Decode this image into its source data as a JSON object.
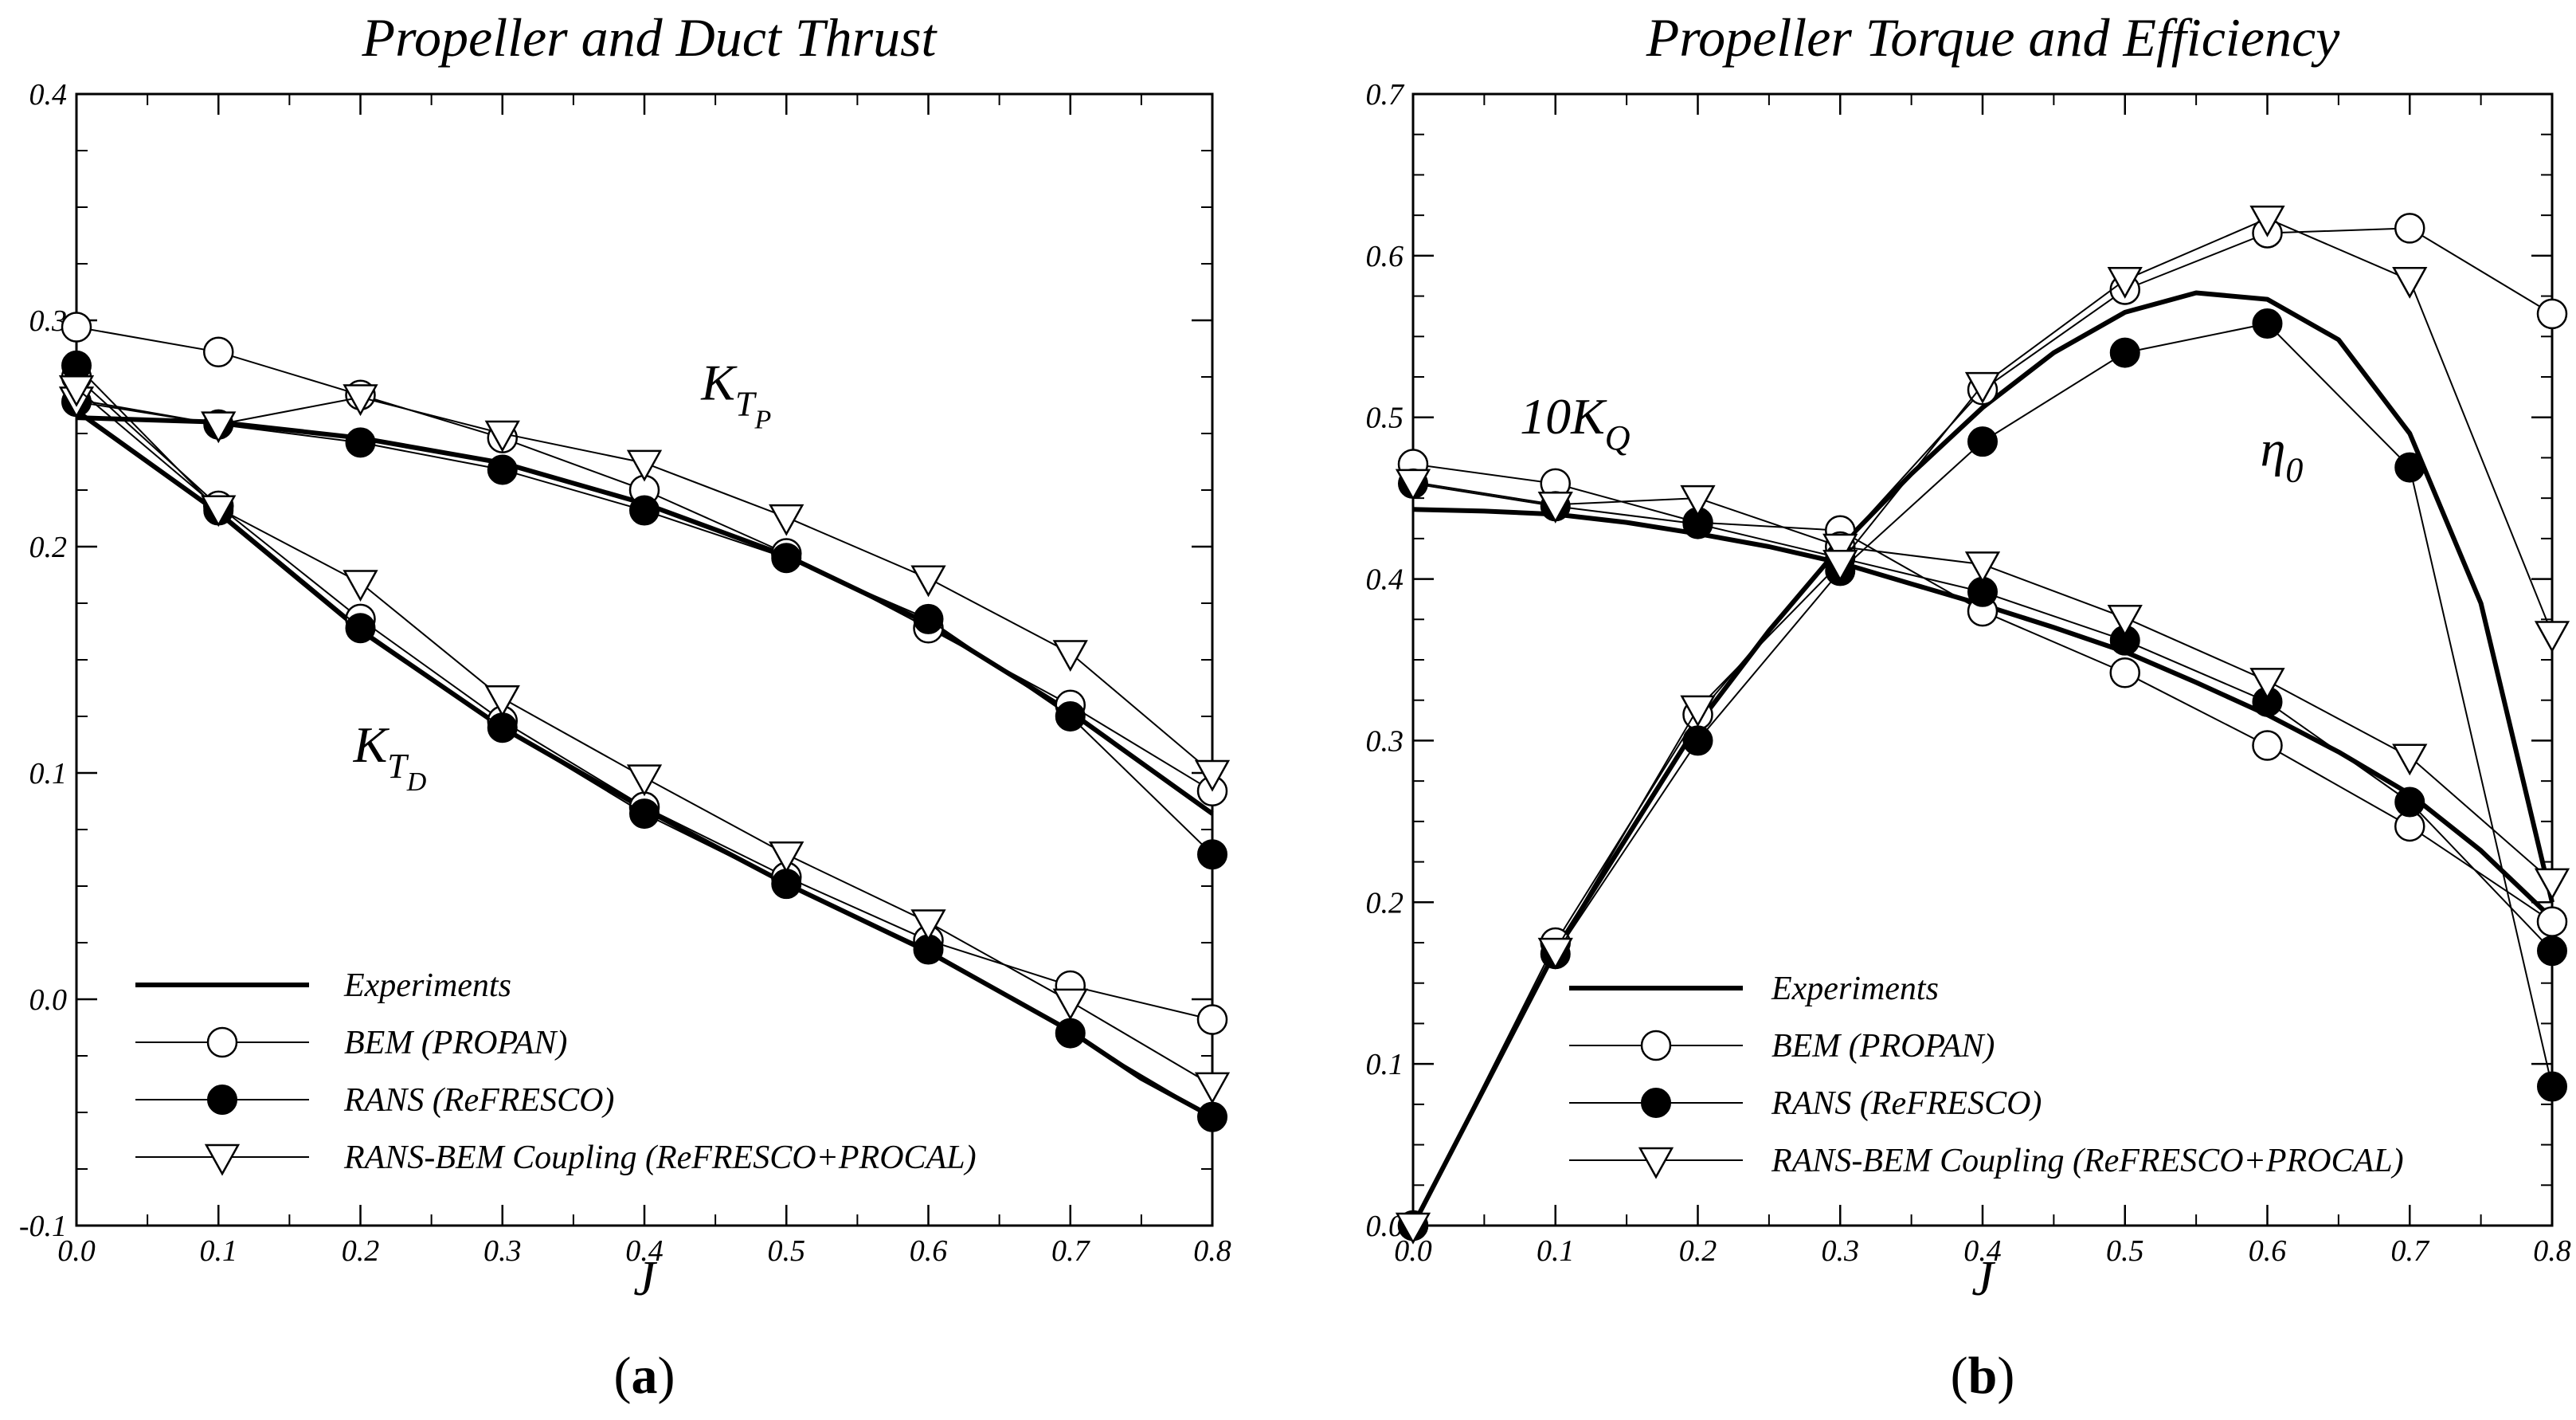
{
  "figure_label": "Propeller and duct thrust / propeller torque and efficiency versus advance ratio J",
  "legend": [
    {
      "label": "Experiments",
      "style": "thick-line"
    },
    {
      "label": "BEM (PROPAN)",
      "style": "open-circle"
    },
    {
      "label": "RANS (ReFRESCO)",
      "style": "filled-circle"
    },
    {
      "label": "RANS-BEM Coupling (ReFRESCO+PROCAL)",
      "style": "open-triangle"
    }
  ],
  "chart_data": [
    {
      "type": "line",
      "panel": "a",
      "caption_letter": "a",
      "title": "Propeller and Duct Thrust",
      "xlabel": "J",
      "ylabel": "",
      "xlim": [
        0.0,
        0.8
      ],
      "ylim": [
        -0.1,
        0.4
      ],
      "xticks": [
        "0.0",
        "0.1",
        "0.2",
        "0.3",
        "0.4",
        "0.5",
        "0.6",
        "0.7",
        "0.8"
      ],
      "yticks": [
        "-0.1",
        "0.0",
        "0.1",
        "0.2",
        "0.3",
        "0.4"
      ],
      "annotations": [
        {
          "main": "K",
          "sub": "T",
          "subsub": "P",
          "at": [
            0.44,
            0.265
          ]
        },
        {
          "main": "K",
          "sub": "T",
          "subsub": "D",
          "at": [
            0.195,
            0.105
          ]
        }
      ],
      "series": [
        {
          "name": "Experiments (K_TP)",
          "style": "thick-line",
          "x": [
            0.0,
            0.1,
            0.2,
            0.3,
            0.4,
            0.5,
            0.6,
            0.7,
            0.8
          ],
          "y": [
            0.257,
            0.255,
            0.248,
            0.237,
            0.219,
            0.196,
            0.166,
            0.127,
            0.082
          ]
        },
        {
          "name": "Experiments (K_TD)",
          "style": "thick-line",
          "x": [
            0.0,
            0.1,
            0.2,
            0.3,
            0.4,
            0.5,
            0.6,
            0.7,
            0.75,
            0.8
          ],
          "y": [
            0.26,
            0.215,
            0.163,
            0.12,
            0.084,
            0.051,
            0.021,
            -0.014,
            -0.035,
            -0.052
          ]
        },
        {
          "name": "BEM (PROPAN) K_TP",
          "style": "open-circle",
          "x": [
            0.0,
            0.1,
            0.2,
            0.3,
            0.4,
            0.5,
            0.6,
            0.7,
            0.8
          ],
          "y": [
            0.297,
            0.286,
            0.267,
            0.248,
            0.225,
            0.197,
            0.164,
            0.13,
            0.092
          ]
        },
        {
          "name": "BEM (PROPAN) K_TD",
          "style": "open-circle",
          "x": [
            0.0,
            0.1,
            0.2,
            0.3,
            0.4,
            0.5,
            0.6,
            0.7,
            0.8
          ],
          "y": [
            0.275,
            0.218,
            0.168,
            0.123,
            0.085,
            0.054,
            0.026,
            0.006,
            -0.009
          ]
        },
        {
          "name": "RANS (ReFRESCO) K_TP",
          "style": "filled-circle",
          "x": [
            0.0,
            0.1,
            0.2,
            0.3,
            0.4,
            0.5,
            0.6,
            0.7,
            0.8
          ],
          "y": [
            0.264,
            0.254,
            0.246,
            0.234,
            0.216,
            0.195,
            0.168,
            0.125,
            0.064
          ]
        },
        {
          "name": "RANS (ReFRESCO) K_TD",
          "style": "filled-circle",
          "x": [
            0.0,
            0.1,
            0.2,
            0.3,
            0.4,
            0.5,
            0.6,
            0.7,
            0.8
          ],
          "y": [
            0.28,
            0.216,
            0.164,
            0.12,
            0.082,
            0.051,
            0.022,
            -0.015,
            -0.052
          ]
        },
        {
          "name": "RANS-BEM Coupling K_TP",
          "style": "open-triangle",
          "x": [
            0.0,
            0.1,
            0.2,
            0.3,
            0.4,
            0.5,
            0.6,
            0.7,
            0.8
          ],
          "y": [
            0.265,
            0.254,
            0.266,
            0.25,
            0.237,
            0.213,
            0.186,
            0.153,
            0.1
          ]
        },
        {
          "name": "RANS-BEM Coupling K_TD",
          "style": "open-triangle",
          "x": [
            0.0,
            0.1,
            0.2,
            0.3,
            0.4,
            0.5,
            0.6,
            0.7,
            0.8
          ],
          "y": [
            0.27,
            0.217,
            0.184,
            0.133,
            0.098,
            0.064,
            0.034,
            -0.001,
            -0.038
          ]
        }
      ]
    },
    {
      "type": "line",
      "panel": "b",
      "caption_letter": "b",
      "title": "Propeller Torque and Efficiency",
      "xlabel": "J",
      "ylabel": "",
      "xlim": [
        0.0,
        0.8
      ],
      "ylim": [
        0.0,
        0.7
      ],
      "xticks": [
        "0.0",
        "0.1",
        "0.2",
        "0.3",
        "0.4",
        "0.5",
        "0.6",
        "0.7",
        "0.8"
      ],
      "yticks": [
        "0.0",
        "0.1",
        "0.2",
        "0.3",
        "0.4",
        "0.5",
        "0.6",
        "0.7"
      ],
      "annotations": [
        {
          "main": "10K",
          "sub": "Q",
          "subsub": "",
          "at": [
            0.075,
            0.49
          ]
        },
        {
          "main": "η",
          "sub": "0",
          "subsub": "",
          "at": [
            0.595,
            0.47
          ]
        }
      ],
      "series": [
        {
          "name": "Experiments (10K_Q)",
          "style": "thick-line",
          "x": [
            0.0,
            0.05,
            0.1,
            0.15,
            0.2,
            0.25,
            0.3,
            0.35,
            0.4,
            0.45,
            0.5,
            0.55,
            0.6,
            0.65,
            0.7,
            0.75,
            0.8
          ],
          "y": [
            0.443,
            0.442,
            0.44,
            0.435,
            0.428,
            0.42,
            0.41,
            0.397,
            0.384,
            0.37,
            0.355,
            0.336,
            0.316,
            0.293,
            0.267,
            0.232,
            0.19
          ]
        },
        {
          "name": "Experiments (η0)",
          "style": "thick-line",
          "x": [
            0.0,
            0.05,
            0.1,
            0.15,
            0.2,
            0.25,
            0.3,
            0.35,
            0.4,
            0.45,
            0.5,
            0.55,
            0.6,
            0.65,
            0.7,
            0.75,
            0.8
          ],
          "y": [
            0.0,
            0.085,
            0.17,
            0.24,
            0.31,
            0.368,
            0.42,
            0.465,
            0.506,
            0.54,
            0.565,
            0.577,
            0.573,
            0.548,
            0.49,
            0.385,
            0.2
          ]
        },
        {
          "name": "BEM (PROPAN) 10K_Q",
          "style": "open-circle",
          "x": [
            0.0,
            0.1,
            0.2,
            0.3,
            0.4,
            0.5,
            0.6,
            0.7,
            0.8
          ],
          "y": [
            0.471,
            0.459,
            0.435,
            0.43,
            0.38,
            0.342,
            0.297,
            0.247,
            0.188
          ]
        },
        {
          "name": "BEM (PROPAN) η0",
          "style": "open-circle",
          "x": [
            0.0,
            0.1,
            0.2,
            0.3,
            0.4,
            0.5,
            0.6,
            0.7,
            0.8
          ],
          "y": [
            0.0,
            0.175,
            0.316,
            0.42,
            0.517,
            0.579,
            0.614,
            0.617,
            0.564
          ]
        },
        {
          "name": "RANS (ReFRESCO) 10K_Q",
          "style": "filled-circle",
          "x": [
            0.0,
            0.1,
            0.2,
            0.3,
            0.4,
            0.5,
            0.6,
            0.7,
            0.8
          ],
          "y": [
            0.459,
            0.445,
            0.434,
            0.413,
            0.392,
            0.362,
            0.324,
            0.262,
            0.17
          ]
        },
        {
          "name": "RANS (ReFRESCO) η0",
          "style": "filled-circle",
          "x": [
            0.0,
            0.1,
            0.2,
            0.3,
            0.4,
            0.5,
            0.6,
            0.7,
            0.8
          ],
          "y": [
            0.0,
            0.168,
            0.3,
            0.405,
            0.485,
            0.54,
            0.558,
            0.469,
            0.086
          ]
        },
        {
          "name": "RANS-BEM Coupling 10K_Q",
          "style": "open-triangle",
          "x": [
            0.0,
            0.1,
            0.2,
            0.3,
            0.4,
            0.5,
            0.6,
            0.7,
            0.8
          ],
          "y": [
            0.46,
            0.446,
            0.45,
            0.42,
            0.409,
            0.376,
            0.337,
            0.29,
            0.213
          ]
        },
        {
          "name": "RANS-BEM Coupling η0",
          "style": "open-triangle",
          "x": [
            0.0,
            0.1,
            0.2,
            0.3,
            0.4,
            0.5,
            0.6,
            0.7,
            0.8
          ],
          "y": [
            0.0,
            0.17,
            0.32,
            0.41,
            0.52,
            0.585,
            0.623,
            0.585,
            0.366
          ]
        }
      ]
    }
  ]
}
